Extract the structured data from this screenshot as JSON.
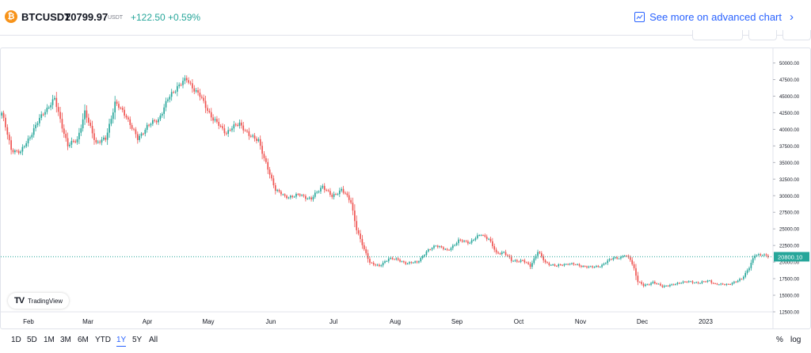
{
  "header": {
    "coin_icon": "bitcoin-icon",
    "symbol": "BTCUSDT",
    "price": "20799.97",
    "currency": "USDT",
    "change": "+122.50 +0.59%",
    "advanced_link": "See more on advanced chart"
  },
  "chart_data": {
    "type": "candlestick",
    "x_labels": [
      "Feb",
      "Mar",
      "Apr",
      "May",
      "Jun",
      "Jul",
      "Aug",
      "Sep",
      "Oct",
      "Nov",
      "Dec",
      "2023"
    ],
    "y_ticks": [
      "50000.00",
      "47500.00",
      "45000.00",
      "42500.00",
      "40000.00",
      "37500.00",
      "35000.00",
      "32500.00",
      "30000.00",
      "27500.00",
      "25000.00",
      "22500.00",
      "20000.00",
      "17500.00",
      "15000.00",
      "12500.00"
    ],
    "y_range": [
      12500,
      51500
    ],
    "last_price_label": "20800.10",
    "last_price": 20800.1,
    "up_color": "#26a69a",
    "down_color": "#ef5350",
    "anchor_closes": [
      [
        0,
        42500
      ],
      [
        5,
        37000
      ],
      [
        10,
        36500
      ],
      [
        15,
        39000
      ],
      [
        22,
        42500
      ],
      [
        28,
        44500
      ],
      [
        35,
        37500
      ],
      [
        40,
        38500
      ],
      [
        44,
        42500
      ],
      [
        50,
        38000
      ],
      [
        55,
        38500
      ],
      [
        60,
        44000
      ],
      [
        66,
        42000
      ],
      [
        72,
        38500
      ],
      [
        77,
        40500
      ],
      [
        83,
        41500
      ],
      [
        88,
        44500
      ],
      [
        93,
        46500
      ],
      [
        98,
        47500
      ],
      [
        105,
        45000
      ],
      [
        112,
        41500
      ],
      [
        119,
        39500
      ],
      [
        126,
        41000
      ],
      [
        131,
        39000
      ],
      [
        136,
        38500
      ],
      [
        139,
        35500
      ],
      [
        145,
        31000
      ],
      [
        150,
        29800
      ],
      [
        158,
        30100
      ],
      [
        164,
        29500
      ],
      [
        170,
        31500
      ],
      [
        175,
        29800
      ],
      [
        180,
        31000
      ],
      [
        185,
        29000
      ],
      [
        188,
        25000
      ],
      [
        192,
        21800
      ],
      [
        195,
        20000
      ],
      [
        200,
        19300
      ],
      [
        205,
        20600
      ],
      [
        210,
        20300
      ],
      [
        215,
        19800
      ],
      [
        220,
        20000
      ],
      [
        225,
        21500
      ],
      [
        230,
        22600
      ],
      [
        236,
        21700
      ],
      [
        242,
        23200
      ],
      [
        248,
        23000
      ],
      [
        254,
        24200
      ],
      [
        258,
        23500
      ],
      [
        262,
        21300
      ],
      [
        266,
        21500
      ],
      [
        270,
        20200
      ],
      [
        276,
        20200
      ],
      [
        280,
        19400
      ],
      [
        284,
        21600
      ],
      [
        288,
        19900
      ],
      [
        294,
        19400
      ],
      [
        300,
        19800
      ],
      [
        306,
        19500
      ],
      [
        312,
        19200
      ],
      [
        318,
        19500
      ],
      [
        324,
        20700
      ],
      [
        328,
        20600
      ],
      [
        330,
        21000
      ],
      [
        333,
        20500
      ],
      [
        335,
        19000
      ],
      [
        337,
        17000
      ],
      [
        340,
        16500
      ],
      [
        345,
        16900
      ],
      [
        350,
        16400
      ],
      [
        355,
        16500
      ],
      [
        360,
        17000
      ],
      [
        365,
        17000
      ],
      [
        370,
        16900
      ],
      [
        375,
        17200
      ],
      [
        378,
        16700
      ],
      [
        381,
        16600
      ],
      [
        385,
        16700
      ],
      [
        389,
        17000
      ],
      [
        392,
        17500
      ],
      [
        396,
        19200
      ],
      [
        399,
        21000
      ],
      [
        403,
        21200
      ],
      [
        406,
        20800
      ]
    ]
  },
  "range_buttons": [
    "1D",
    "5D",
    "1M",
    "3M",
    "6M",
    "YTD",
    "1Y",
    "5Y",
    "All"
  ],
  "active_range": "1Y",
  "scale_buttons": [
    "%",
    "log"
  ],
  "logo_text": "TradingView"
}
